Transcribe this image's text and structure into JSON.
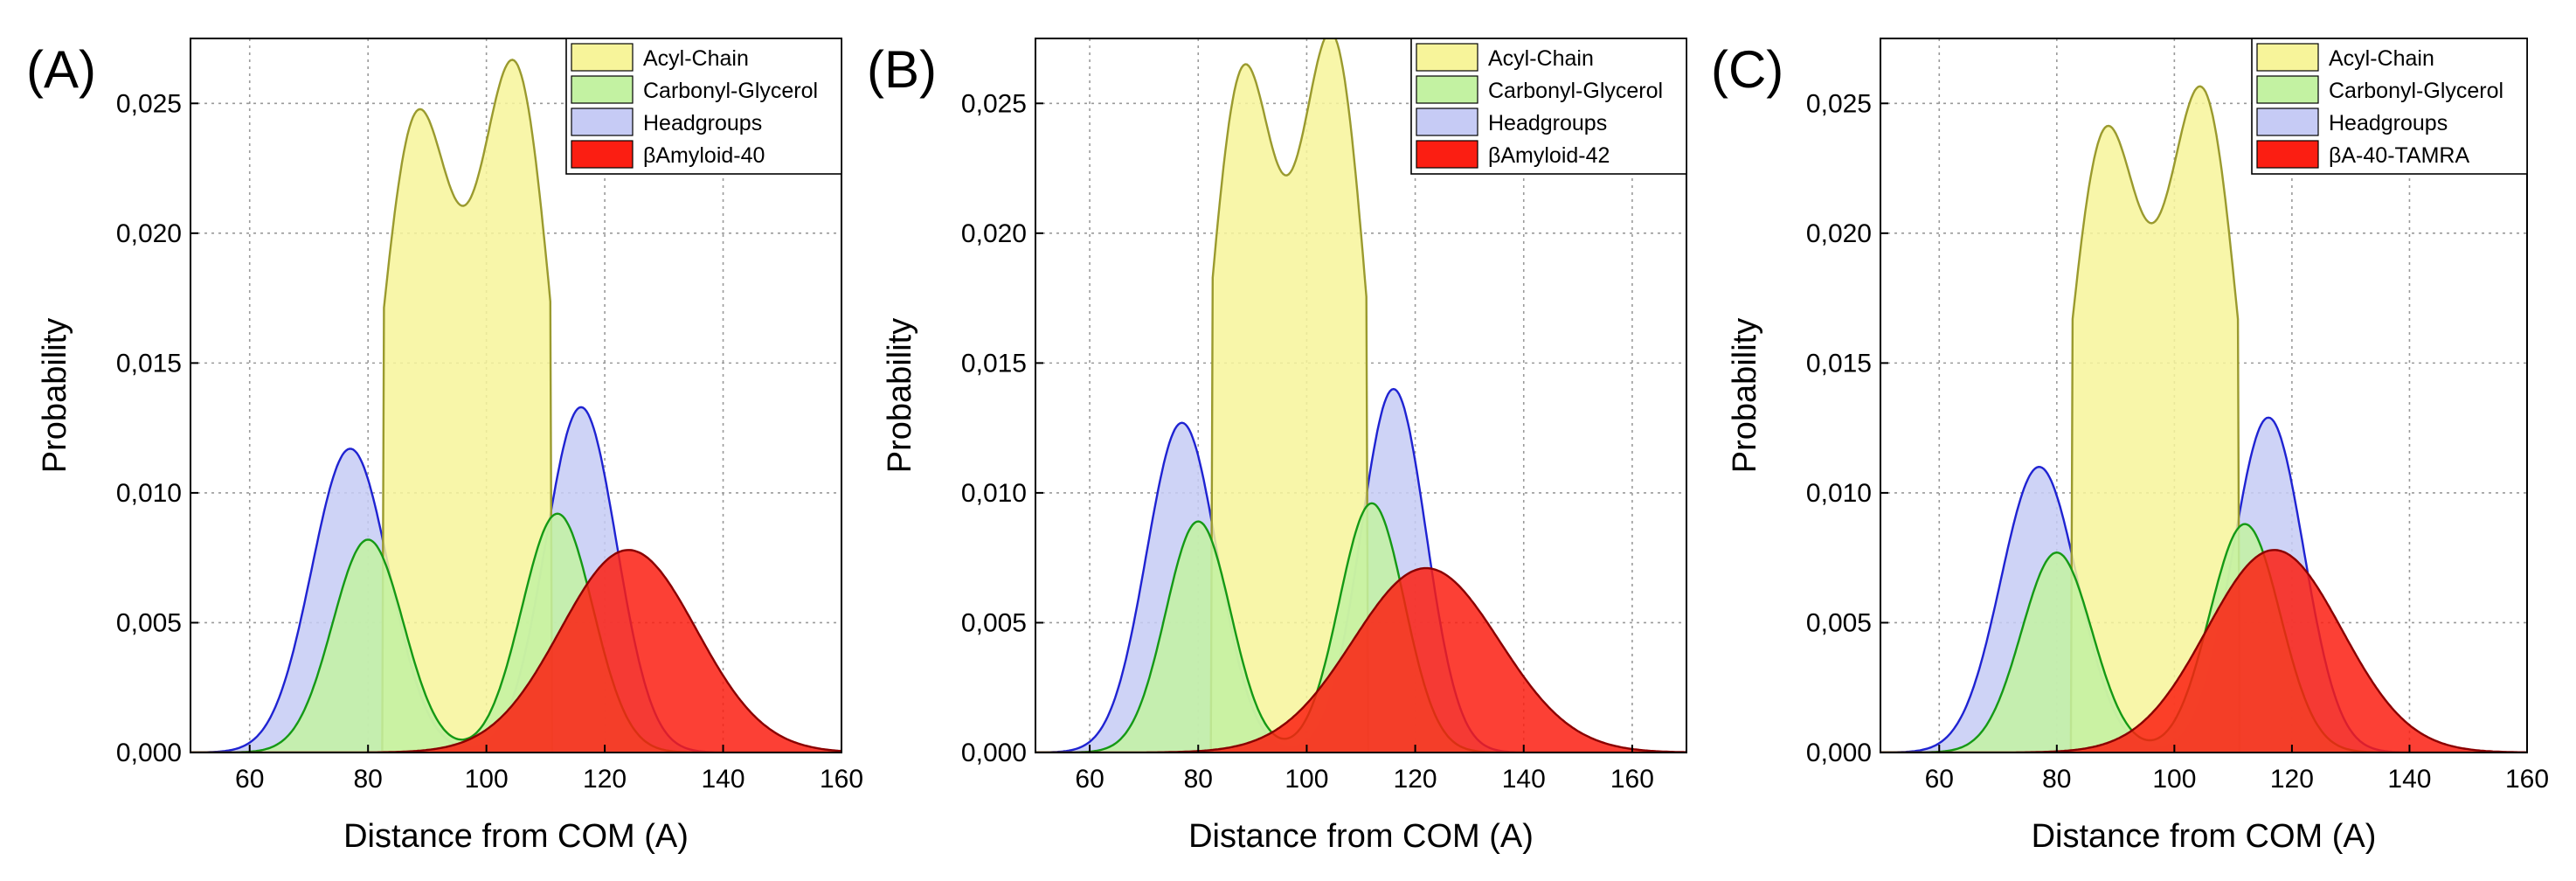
{
  "figure": {
    "background": "#ffffff"
  },
  "series_styles": {
    "Acyl-Chain": {
      "fill": "#f7f49a",
      "stroke": "#9a9a2e"
    },
    "Carbonyl-Glycerol": {
      "fill": "#c3f2a2",
      "stroke": "#159915"
    },
    "Headgroups": {
      "fill": "#c6cbf5",
      "stroke": "#1f23d2"
    },
    "Amyloid": {
      "fill": "#fb1e12",
      "stroke": "#8a0000"
    }
  },
  "chart_data": [
    {
      "type": "area",
      "panel_label": "(A)",
      "xlabel": "Distance from COM (A)",
      "ylabel": "Probability",
      "xlim": [
        50,
        160
      ],
      "ylim": [
        0,
        0.0275
      ],
      "xticks": [
        60,
        80,
        100,
        120,
        140,
        160
      ],
      "yticks": [
        0,
        0.005,
        0.01,
        0.015,
        0.02,
        0.025
      ],
      "ytick_labels": [
        "0,000",
        "0,005",
        "0,010",
        "0,015",
        "0,020",
        "0,025"
      ],
      "grid": true,
      "legend_position": "top-right",
      "legend": [
        "Acyl-Chain",
        "Carbonyl-Glycerol",
        "Headgroups",
        "βAmyloid-40"
      ],
      "series": [
        {
          "name": "Headgroups",
          "components": [
            {
              "amp": 0.0117,
              "mu": 77,
              "sigma": 6.5
            },
            {
              "amp": 0.0133,
              "mu": 116,
              "sigma": 6.0
            }
          ]
        },
        {
          "name": "Acyl-Chain",
          "components": [
            {
              "amp": 0.0238,
              "mu": 88,
              "sigma": 6.5
            },
            {
              "amp": 0.0258,
              "mu": 105,
              "sigma": 6.5
            }
          ],
          "cutoff": [
            82.5,
            111
          ]
        },
        {
          "name": "Carbonyl-Glycerol",
          "components": [
            {
              "amp": 0.0082,
              "mu": 80,
              "sigma": 6.0
            },
            {
              "amp": 0.0092,
              "mu": 112,
              "sigma": 6.0
            }
          ]
        },
        {
          "name": "βAmyloid-40",
          "components": [
            {
              "amp": 0.0078,
              "mu": 124,
              "sigma": 11.5
            }
          ]
        }
      ]
    },
    {
      "type": "area",
      "panel_label": "(B)",
      "xlabel": "Distance from COM (A)",
      "ylabel": "Probability",
      "xlim": [
        50,
        170
      ],
      "ylim": [
        0,
        0.0275
      ],
      "xticks": [
        60,
        80,
        100,
        120,
        140,
        160
      ],
      "yticks": [
        0,
        0.005,
        0.01,
        0.015,
        0.02,
        0.025
      ],
      "ytick_labels": [
        "0,000",
        "0,005",
        "0,010",
        "0,015",
        "0,020",
        "0,025"
      ],
      "grid": true,
      "legend_position": "top-right",
      "legend": [
        "Acyl-Chain",
        "Carbonyl-Glycerol",
        "Headgroups",
        "βAmyloid-42"
      ],
      "series": [
        {
          "name": "Headgroups",
          "components": [
            {
              "amp": 0.0127,
              "mu": 77,
              "sigma": 6.5
            },
            {
              "amp": 0.014,
              "mu": 116,
              "sigma": 6.0
            }
          ]
        },
        {
          "name": "Acyl-Chain",
          "components": [
            {
              "amp": 0.0255,
              "mu": 88,
              "sigma": 6.5
            },
            {
              "amp": 0.0268,
              "mu": 105,
              "sigma": 6.5
            }
          ],
          "cutoff": [
            82.5,
            111
          ]
        },
        {
          "name": "Carbonyl-Glycerol",
          "components": [
            {
              "amp": 0.0089,
              "mu": 80,
              "sigma": 6.0
            },
            {
              "amp": 0.0096,
              "mu": 112,
              "sigma": 6.0
            }
          ]
        },
        {
          "name": "βAmyloid-42",
          "components": [
            {
              "amp": 0.0071,
              "mu": 122,
              "sigma": 13.5
            }
          ]
        }
      ]
    },
    {
      "type": "area",
      "panel_label": "(C)",
      "xlabel": "Distance from COM (A)",
      "ylabel": "Probability",
      "xlim": [
        50,
        160
      ],
      "ylim": [
        0,
        0.0275
      ],
      "xticks": [
        60,
        80,
        100,
        120,
        140,
        160
      ],
      "yticks": [
        0,
        0.005,
        0.01,
        0.015,
        0.02,
        0.025
      ],
      "ytick_labels": [
        "0,000",
        "0,005",
        "0,010",
        "0,015",
        "0,020",
        "0,025"
      ],
      "grid": true,
      "legend_position": "top-right",
      "legend": [
        "Acyl-Chain",
        "Carbonyl-Glycerol",
        "Headgroups",
        "βA-40-TAMRA"
      ],
      "series": [
        {
          "name": "Headgroups",
          "components": [
            {
              "amp": 0.011,
              "mu": 77,
              "sigma": 6.5
            },
            {
              "amp": 0.0129,
              "mu": 116,
              "sigma": 6.0
            }
          ]
        },
        {
          "name": "Acyl-Chain",
          "components": [
            {
              "amp": 0.0232,
              "mu": 88,
              "sigma": 6.5
            },
            {
              "amp": 0.0248,
              "mu": 105,
              "sigma": 6.5
            }
          ],
          "cutoff": [
            82.5,
            111
          ]
        },
        {
          "name": "Carbonyl-Glycerol",
          "components": [
            {
              "amp": 0.0077,
              "mu": 80,
              "sigma": 6.0
            },
            {
              "amp": 0.0088,
              "mu": 112,
              "sigma": 6.0
            }
          ]
        },
        {
          "name": "βA-40-TAMRA",
          "components": [
            {
              "amp": 0.0078,
              "mu": 117,
              "sigma": 11.5
            }
          ]
        }
      ]
    }
  ]
}
